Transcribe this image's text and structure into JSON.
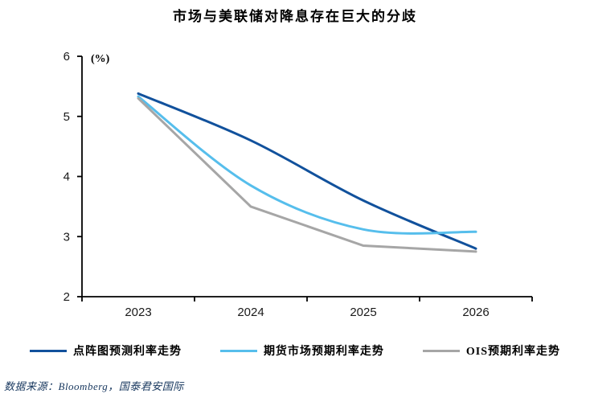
{
  "title": "市场与美联储对降息存在巨大的分歧",
  "source": "数据来源：Bloomberg，国泰君安国际",
  "chart_data": {
    "type": "line",
    "title": "市场与美联储对降息存在巨大的分歧",
    "unit_label": "(%)",
    "xlabel": "",
    "ylabel": "(%)",
    "categories": [
      "2023",
      "2024",
      "2025",
      "2026"
    ],
    "series": [
      {
        "name": "点阵图预测利率走势",
        "color": "#11519C",
        "smooth": true,
        "values": [
          5.38,
          4.6,
          3.6,
          2.8
        ]
      },
      {
        "name": "期货市场预期利率走势",
        "color": "#56BEEC",
        "smooth": true,
        "values": [
          5.33,
          3.85,
          3.12,
          3.08
        ]
      },
      {
        "name": "OIS预期利率走势",
        "color": "#A6A6A6",
        "smooth": false,
        "values": [
          5.3,
          3.5,
          2.85,
          2.75
        ]
      }
    ],
    "ylim": [
      2,
      6
    ],
    "yticks": [
      2,
      3,
      4,
      5,
      6
    ],
    "grid": false,
    "legend_position": "bottom",
    "axis_color": "#000000",
    "source_color": "#17375E"
  }
}
